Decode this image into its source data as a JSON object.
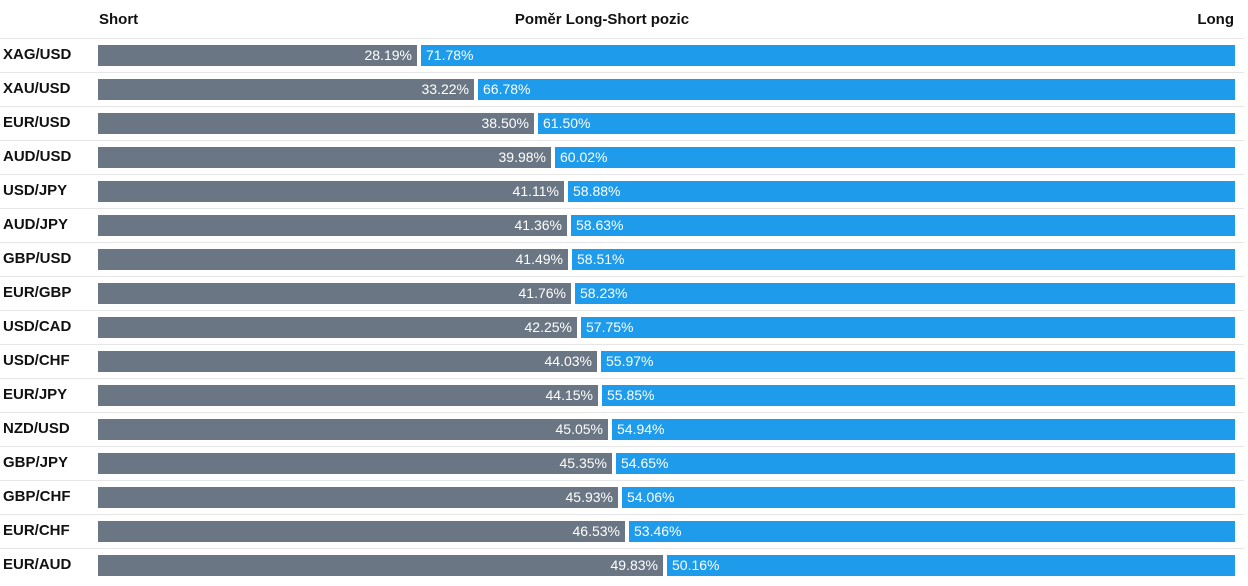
{
  "header": {
    "short_label": "Short",
    "title": "Poměr Long-Short pozic",
    "long_label": "Long"
  },
  "colors": {
    "short": "#6b7684",
    "long": "#1e9bea"
  },
  "chart_data": {
    "type": "bar",
    "orientation": "horizontal-stacked",
    "title": "Poměr Long-Short pozic",
    "xlim": [
      0,
      100
    ],
    "legend": "top",
    "categories": [
      "XAG/USD",
      "XAU/USD",
      "EUR/USD",
      "AUD/USD",
      "USD/JPY",
      "AUD/JPY",
      "GBP/USD",
      "EUR/GBP",
      "USD/CAD",
      "USD/CHF",
      "EUR/JPY",
      "NZD/USD",
      "GBP/JPY",
      "GBP/CHF",
      "EUR/CHF",
      "EUR/AUD"
    ],
    "series": [
      {
        "name": "Short",
        "values": [
          28.19,
          33.22,
          38.5,
          39.98,
          41.11,
          41.36,
          41.49,
          41.76,
          42.25,
          44.03,
          44.15,
          45.05,
          45.35,
          45.93,
          46.53,
          49.83
        ],
        "labels": [
          "28.19%",
          "33.22%",
          "38.50%",
          "39.98%",
          "41.11%",
          "41.36%",
          "41.49%",
          "41.76%",
          "42.25%",
          "44.03%",
          "44.15%",
          "45.05%",
          "45.35%",
          "45.93%",
          "46.53%",
          "49.83%"
        ]
      },
      {
        "name": "Long",
        "values": [
          71.78,
          66.78,
          61.5,
          60.02,
          58.88,
          58.63,
          58.51,
          58.23,
          57.75,
          55.97,
          55.85,
          54.94,
          54.65,
          54.06,
          53.46,
          50.16
        ],
        "labels": [
          "71.78%",
          "66.78%",
          "61.50%",
          "60.02%",
          "58.88%",
          "58.63%",
          "58.51%",
          "58.23%",
          "57.75%",
          "55.97%",
          "55.85%",
          "54.94%",
          "54.65%",
          "54.06%",
          "53.46%",
          "50.16%"
        ]
      }
    ]
  }
}
